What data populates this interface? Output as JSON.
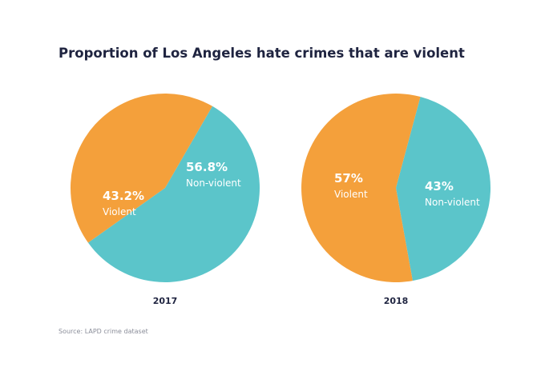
{
  "title": "Proportion of Los Angeles hate crimes that are violent",
  "source": "Source: LAPD crime dataset",
  "colors": {
    "violent": "#f4a03b",
    "non_violent": "#5bc5ca"
  },
  "chart_data": [
    {
      "type": "pie",
      "label": "2017",
      "slices": [
        {
          "name": "Violent",
          "value": 43.2,
          "label": "43.2%",
          "color": "#f4a03b"
        },
        {
          "name": "Non-violent",
          "value": 56.8,
          "label": "56.8%",
          "color": "#5bc5ca"
        }
      ]
    },
    {
      "type": "pie",
      "label": "2018",
      "slices": [
        {
          "name": "Violent",
          "value": 57,
          "label": "57%",
          "color": "#f4a03b"
        },
        {
          "name": "Non-violent",
          "value": 43,
          "label": "43%",
          "color": "#5bc5ca"
        }
      ]
    }
  ]
}
